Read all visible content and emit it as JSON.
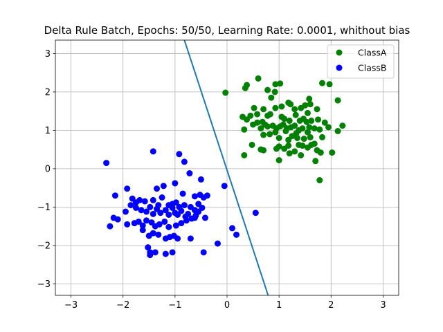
{
  "chart_data": {
    "type": "scatter",
    "title": "Delta Rule Batch, Epochs: 50/50, Learning Rate: 0.0001, whithout bias",
    "xlabel": "",
    "ylabel": "",
    "xlim": [
      -3.3,
      3.3
    ],
    "ylim": [
      -3.3,
      3.35
    ],
    "xticks": [
      -3,
      -2,
      -1,
      0,
      1,
      2,
      3
    ],
    "yticks": [
      -3,
      -2,
      -1,
      0,
      1,
      2,
      3
    ],
    "xtick_labels": [
      "−3",
      "−2",
      "−1",
      "0",
      "1",
      "2",
      "3"
    ],
    "ytick_labels": [
      "−3",
      "−2",
      "−1",
      "0",
      "1",
      "2",
      "3"
    ],
    "grid": true,
    "legend_position": "top-right",
    "decision_boundary": {
      "color": "#1f77b4",
      "points": [
        [
          -0.82,
          3.35
        ],
        [
          0.79,
          -3.3
        ]
      ]
    },
    "series": [
      {
        "name": "ClassA",
        "color": "#008000",
        "points": [
          [
            -0.03,
            1.98
          ],
          [
            0.35,
            2.1
          ],
          [
            0.38,
            2.18
          ],
          [
            0.6,
            2.35
          ],
          [
            0.78,
            2.05
          ],
          [
            0.93,
            2.2
          ],
          [
            1.02,
            2.22
          ],
          [
            0.92,
            2.0
          ],
          [
            1.83,
            2.23
          ],
          [
            1.97,
            2.2
          ],
          [
            1.58,
            1.82
          ],
          [
            1.73,
            1.55
          ],
          [
            2.13,
            1.78
          ],
          [
            0.85,
            1.85
          ],
          [
            1.18,
            1.72
          ],
          [
            1.22,
            1.68
          ],
          [
            1.5,
            1.65
          ],
          [
            1.6,
            1.68
          ],
          [
            1.05,
            1.62
          ],
          [
            1.3,
            1.55
          ],
          [
            1.42,
            1.58
          ],
          [
            1.55,
            1.45
          ],
          [
            0.52,
            1.58
          ],
          [
            0.7,
            1.55
          ],
          [
            0.93,
            1.58
          ],
          [
            0.3,
            1.35
          ],
          [
            0.38,
            1.28
          ],
          [
            0.45,
            1.38
          ],
          [
            0.58,
            1.42
          ],
          [
            0.78,
            1.38
          ],
          [
            0.83,
            1.42
          ],
          [
            1.05,
            1.35
          ],
          [
            1.1,
            1.3
          ],
          [
            1.2,
            1.25
          ],
          [
            1.32,
            1.4
          ],
          [
            1.4,
            1.25
          ],
          [
            1.47,
            1.3
          ],
          [
            1.53,
            1.22
          ],
          [
            1.62,
            1.25
          ],
          [
            1.75,
            1.28
          ],
          [
            0.5,
            1.15
          ],
          [
            0.58,
            1.2
          ],
          [
            0.68,
            1.22
          ],
          [
            0.73,
            1.15
          ],
          [
            0.78,
            1.1
          ],
          [
            0.88,
            1.12
          ],
          [
            0.95,
            1.05
          ],
          [
            1.02,
            1.1
          ],
          [
            1.08,
            1.15
          ],
          [
            1.15,
            1.05
          ],
          [
            1.23,
            1.08
          ],
          [
            1.3,
            1.12
          ],
          [
            1.38,
            1.0
          ],
          [
            1.45,
            1.05
          ],
          [
            1.58,
            1.08
          ],
          [
            1.68,
            1.05
          ],
          [
            1.88,
            1.2
          ],
          [
            1.95,
            1.08
          ],
          [
            2.13,
            0.98
          ],
          [
            2.22,
            1.12
          ],
          [
            0.33,
            1.02
          ],
          [
            0.65,
            1.05
          ],
          [
            0.93,
            0.95
          ],
          [
            1.13,
            0.98
          ],
          [
            1.33,
            0.92
          ],
          [
            1.55,
            0.95
          ],
          [
            1.78,
            1.02
          ],
          [
            1.83,
            0.82
          ],
          [
            0.7,
            0.88
          ],
          [
            0.82,
            0.9
          ],
          [
            1.0,
            0.8
          ],
          [
            1.18,
            0.75
          ],
          [
            1.25,
            0.85
          ],
          [
            1.35,
            0.8
          ],
          [
            1.48,
            0.78
          ],
          [
            1.6,
            0.82
          ],
          [
            0.48,
            0.62
          ],
          [
            0.65,
            0.5
          ],
          [
            0.7,
            0.48
          ],
          [
            0.95,
            0.52
          ],
          [
            1.0,
            0.58
          ],
          [
            1.1,
            0.52
          ],
          [
            1.18,
            0.6
          ],
          [
            1.3,
            0.45
          ],
          [
            1.38,
            0.62
          ],
          [
            1.45,
            0.6
          ],
          [
            1.55,
            0.55
          ],
          [
            1.62,
            0.62
          ],
          [
            1.68,
            0.65
          ],
          [
            1.73,
            0.48
          ],
          [
            0.33,
            0.35
          ],
          [
            1.2,
            0.4
          ],
          [
            1.42,
            0.35
          ],
          [
            1.8,
            0.42
          ],
          [
            2.02,
            0.42
          ],
          [
            1.0,
            0.22
          ],
          [
            1.7,
            0.2
          ],
          [
            1.78,
            -0.3
          ]
        ]
      },
      {
        "name": "ClassB",
        "color": "#0000ff",
        "points": [
          [
            -2.32,
            0.15
          ],
          [
            -1.42,
            0.45
          ],
          [
            -0.92,
            0.38
          ],
          [
            -0.82,
            0.18
          ],
          [
            -0.72,
            -0.12
          ],
          [
            -0.5,
            -0.28
          ],
          [
            -1.92,
            -0.52
          ],
          [
            -1.35,
            -0.52
          ],
          [
            -1.22,
            -0.45
          ],
          [
            -1.0,
            -0.38
          ],
          [
            -0.85,
            -0.65
          ],
          [
            -0.62,
            -0.72
          ],
          [
            -0.52,
            -0.68
          ],
          [
            -0.45,
            -0.75
          ],
          [
            -0.38,
            -0.7
          ],
          [
            -0.05,
            -0.45
          ],
          [
            -2.15,
            -0.7
          ],
          [
            -1.82,
            -0.78
          ],
          [
            -1.75,
            -0.88
          ],
          [
            -1.68,
            -0.82
          ],
          [
            -1.58,
            -0.85
          ],
          [
            -1.42,
            -0.82
          ],
          [
            -1.32,
            -0.95
          ],
          [
            -1.25,
            -0.75
          ],
          [
            -1.12,
            -0.95
          ],
          [
            -1.05,
            -0.92
          ],
          [
            -0.98,
            -0.88
          ],
          [
            -0.92,
            -1.0
          ],
          [
            -0.82,
            -0.95
          ],
          [
            -0.7,
            -1.0
          ],
          [
            -0.62,
            -1.08
          ],
          [
            -0.55,
            -0.92
          ],
          [
            -0.48,
            -1.02
          ],
          [
            -2.1,
            -1.32
          ],
          [
            -2.18,
            -1.28
          ],
          [
            -1.95,
            -1.12
          ],
          [
            -1.85,
            -0.95
          ],
          [
            -1.75,
            -1.02
          ],
          [
            -1.65,
            -1.08
          ],
          [
            -1.55,
            -1.12
          ],
          [
            -1.48,
            -1.0
          ],
          [
            -1.42,
            -1.18
          ],
          [
            -1.35,
            -1.05
          ],
          [
            -1.28,
            -1.15
          ],
          [
            -1.18,
            -1.08
          ],
          [
            -1.12,
            -1.2
          ],
          [
            -1.05,
            -1.02
          ],
          [
            -1.0,
            -1.15
          ],
          [
            -0.95,
            -1.2
          ],
          [
            -0.88,
            -1.1
          ],
          [
            -0.8,
            -1.25
          ],
          [
            -0.75,
            -1.18
          ],
          [
            -0.68,
            -1.3
          ],
          [
            -0.6,
            -1.22
          ],
          [
            -0.55,
            -1.12
          ],
          [
            -0.42,
            -1.28
          ],
          [
            -2.25,
            -1.5
          ],
          [
            -1.92,
            -1.45
          ],
          [
            -1.78,
            -1.42
          ],
          [
            -1.7,
            -1.38
          ],
          [
            -1.62,
            -1.48
          ],
          [
            -1.55,
            -1.35
          ],
          [
            -1.45,
            -1.4
          ],
          [
            -1.38,
            -1.5
          ],
          [
            -1.3,
            -1.45
          ],
          [
            -1.2,
            -1.38
          ],
          [
            -1.12,
            -1.52
          ],
          [
            -0.98,
            -1.48
          ],
          [
            -0.88,
            -1.42
          ],
          [
            -0.78,
            -1.35
          ],
          [
            -0.62,
            -1.28
          ],
          [
            -1.62,
            -1.6
          ],
          [
            -1.5,
            -1.75
          ],
          [
            -1.42,
            -1.68
          ],
          [
            -1.32,
            -1.72
          ],
          [
            -1.18,
            -1.82
          ],
          [
            -1.1,
            -1.78
          ],
          [
            -1.02,
            -1.75
          ],
          [
            -0.95,
            -1.82
          ],
          [
            -0.7,
            -1.82
          ],
          [
            -1.52,
            -2.05
          ],
          [
            -1.48,
            -2.18
          ],
          [
            -1.38,
            -2.18
          ],
          [
            -1.18,
            -2.22
          ],
          [
            -1.05,
            -2.18
          ],
          [
            -1.48,
            -2.25
          ],
          [
            -0.45,
            -2.18
          ],
          [
            -0.18,
            -1.95
          ],
          [
            0.1,
            -1.55
          ],
          [
            0.18,
            -1.72
          ],
          [
            0.55,
            -1.15
          ]
        ]
      }
    ]
  }
}
